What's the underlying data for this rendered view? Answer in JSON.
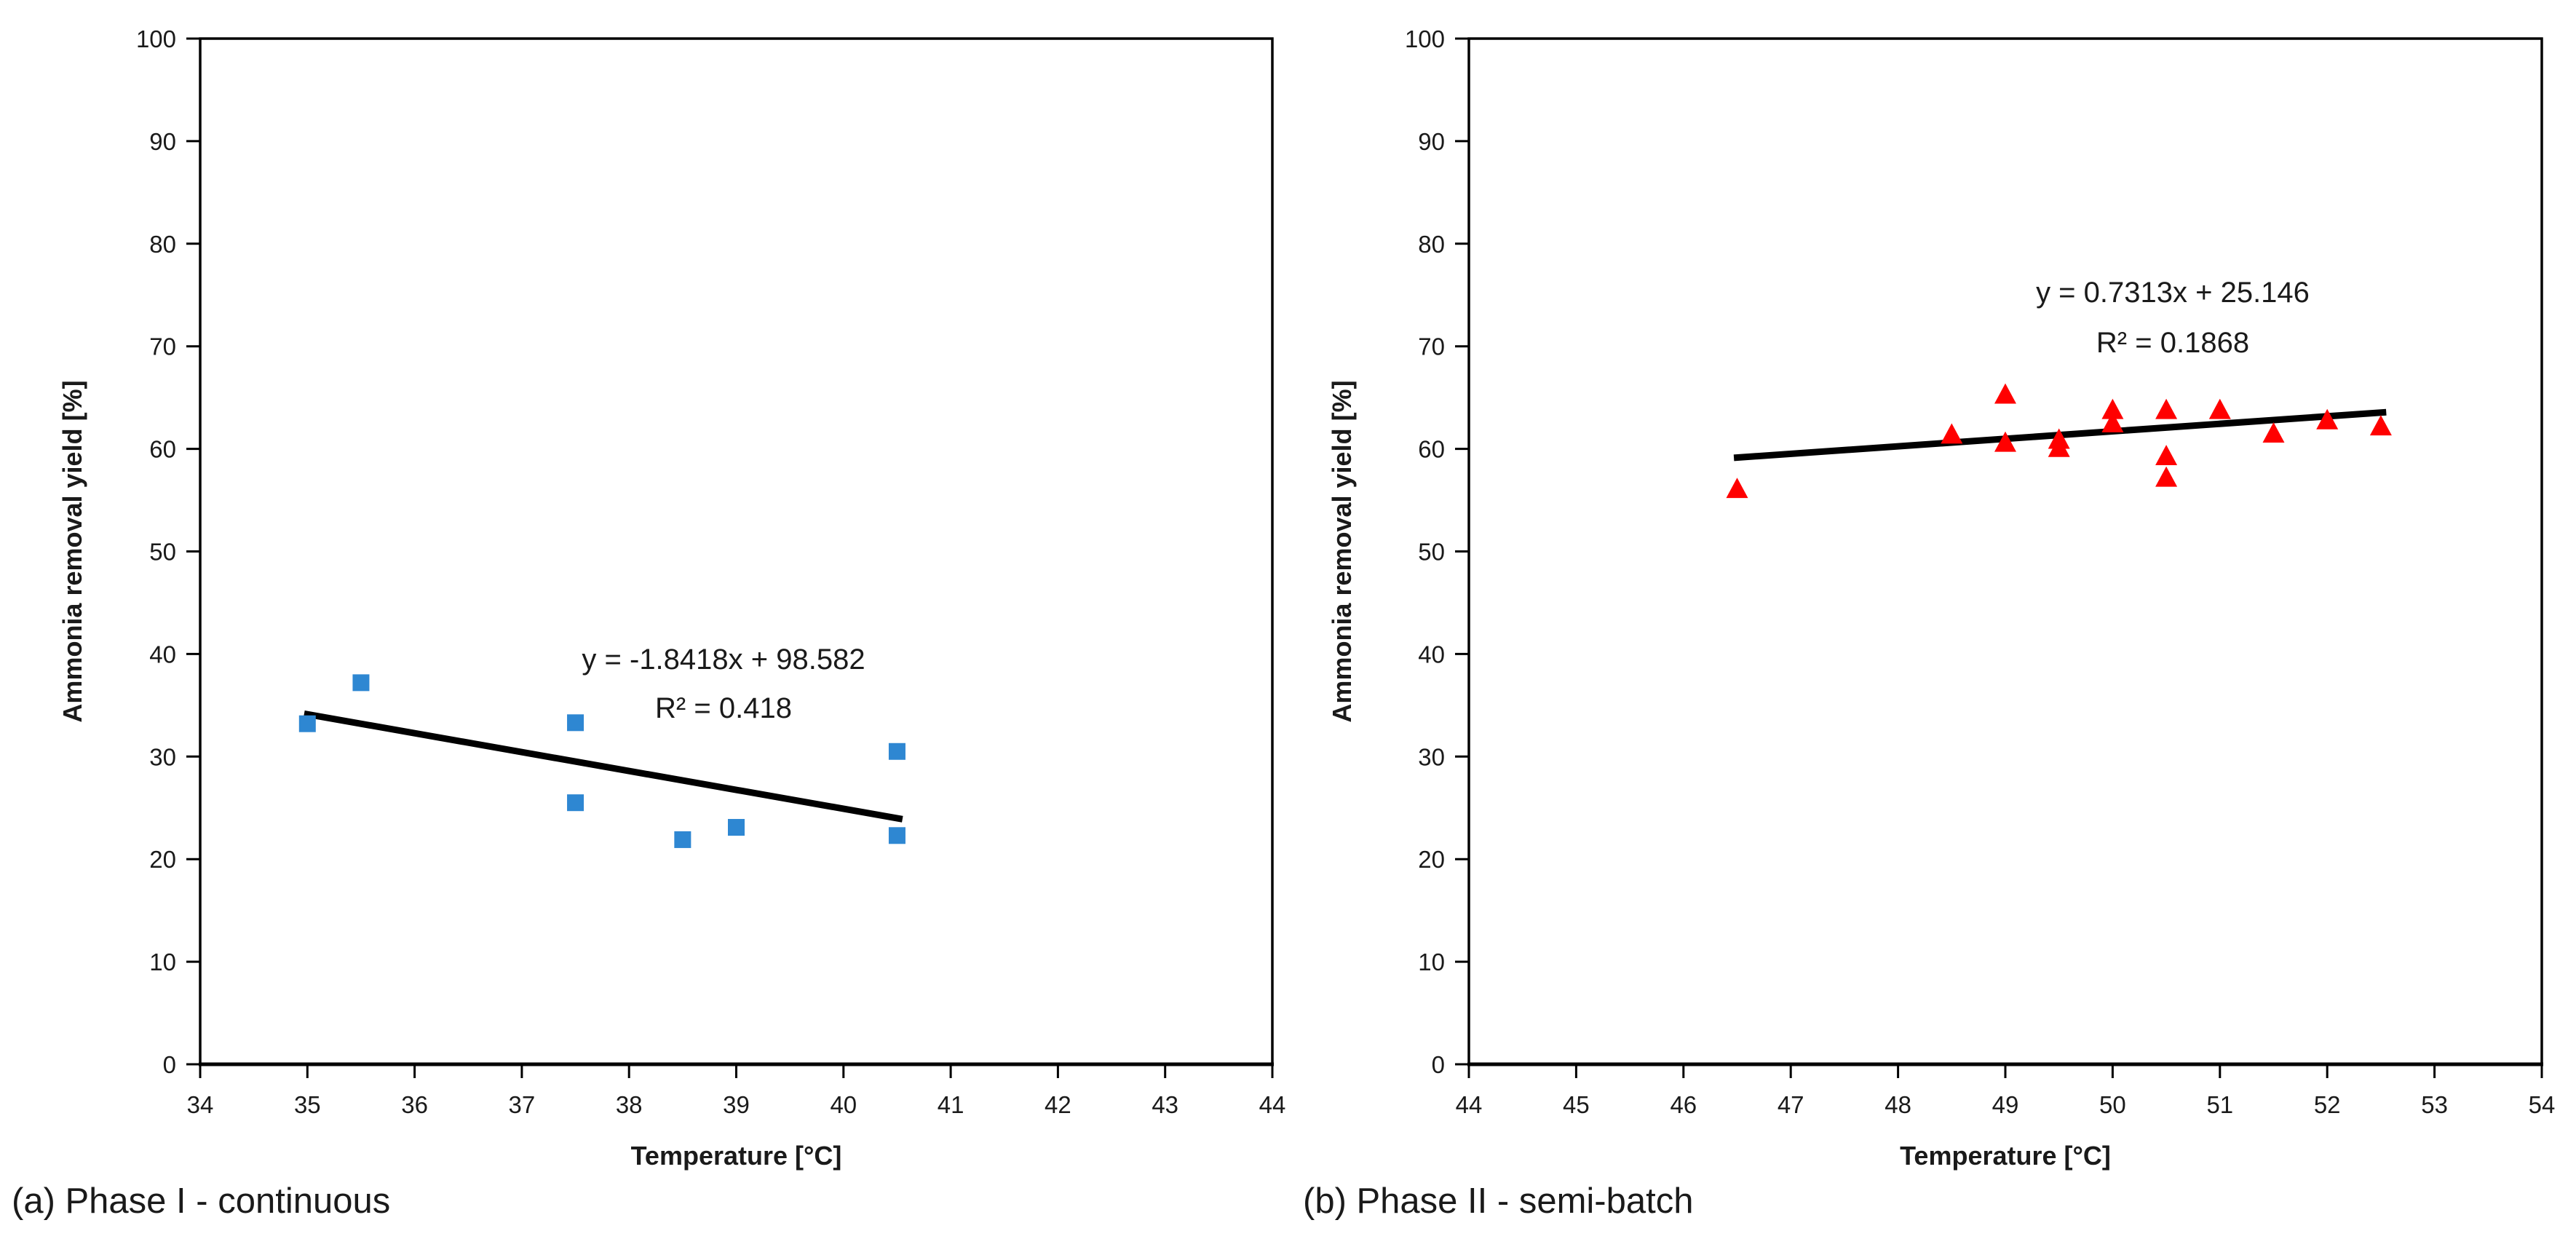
{
  "page": {
    "background": "#ffffff",
    "text_color": "#1a1a1a",
    "frame_color": "#000000"
  },
  "chart_data": [
    {
      "type": "scatter",
      "panel": "a",
      "caption": "(a) Phase I - continuous",
      "xlabel": "Temperature [°C]",
      "ylabel": "Ammonia removal yield [%]",
      "xlim": [
        34,
        44
      ],
      "ylim": [
        0,
        100
      ],
      "x_ticks": [
        34,
        35,
        36,
        37,
        38,
        39,
        40,
        41,
        42,
        43,
        44
      ],
      "y_ticks": [
        0,
        10,
        20,
        30,
        40,
        50,
        60,
        70,
        80,
        90,
        100
      ],
      "grid": false,
      "legend": "none",
      "marker": {
        "shape": "square",
        "color": "#2E87D2",
        "size": 23
      },
      "points": [
        [
          35.0,
          33.2
        ],
        [
          35.5,
          37.2
        ],
        [
          37.5,
          33.3
        ],
        [
          37.5,
          25.5
        ],
        [
          38.5,
          21.9
        ],
        [
          39.0,
          23.1
        ],
        [
          40.5,
          30.5
        ],
        [
          40.5,
          22.3
        ]
      ],
      "trendline": {
        "slope": -1.8418,
        "intercept": 98.582,
        "x_start": 34.97,
        "x_end": 40.55,
        "color": "#000000",
        "label_line1": "y = -1.8418x + 98.582",
        "label_line2": "R² = 0.418"
      }
    },
    {
      "type": "scatter",
      "panel": "b",
      "caption": "(b) Phase II - semi-batch",
      "xlabel": "Temperature [°C]",
      "ylabel": "Ammonia removal yield [%]",
      "xlim": [
        44,
        54
      ],
      "ylim": [
        0,
        100
      ],
      "x_ticks": [
        44,
        45,
        46,
        47,
        48,
        49,
        50,
        51,
        52,
        53,
        54
      ],
      "y_ticks": [
        0,
        10,
        20,
        30,
        40,
        50,
        60,
        70,
        80,
        90,
        100
      ],
      "grid": false,
      "legend": "none",
      "marker": {
        "shape": "triangle",
        "color": "#FF0000",
        "size": 30
      },
      "points": [
        [
          46.5,
          56.2
        ],
        [
          48.5,
          61.5
        ],
        [
          49.0,
          65.4
        ],
        [
          49.0,
          60.7
        ],
        [
          49.5,
          61.0
        ],
        [
          49.5,
          60.2
        ],
        [
          50.0,
          63.9
        ],
        [
          50.0,
          62.6
        ],
        [
          50.5,
          63.9
        ],
        [
          50.5,
          59.4
        ],
        [
          50.5,
          57.3
        ],
        [
          51.0,
          63.9
        ],
        [
          51.5,
          61.6
        ],
        [
          52.0,
          62.9
        ],
        [
          52.5,
          62.3
        ]
      ],
      "trendline": {
        "slope": 0.7313,
        "intercept": 25.146,
        "x_start": 46.47,
        "x_end": 52.55,
        "color": "#000000",
        "label_line1": "y = 0.7313x + 25.146",
        "label_line2": "R² = 0.1868"
      }
    }
  ]
}
